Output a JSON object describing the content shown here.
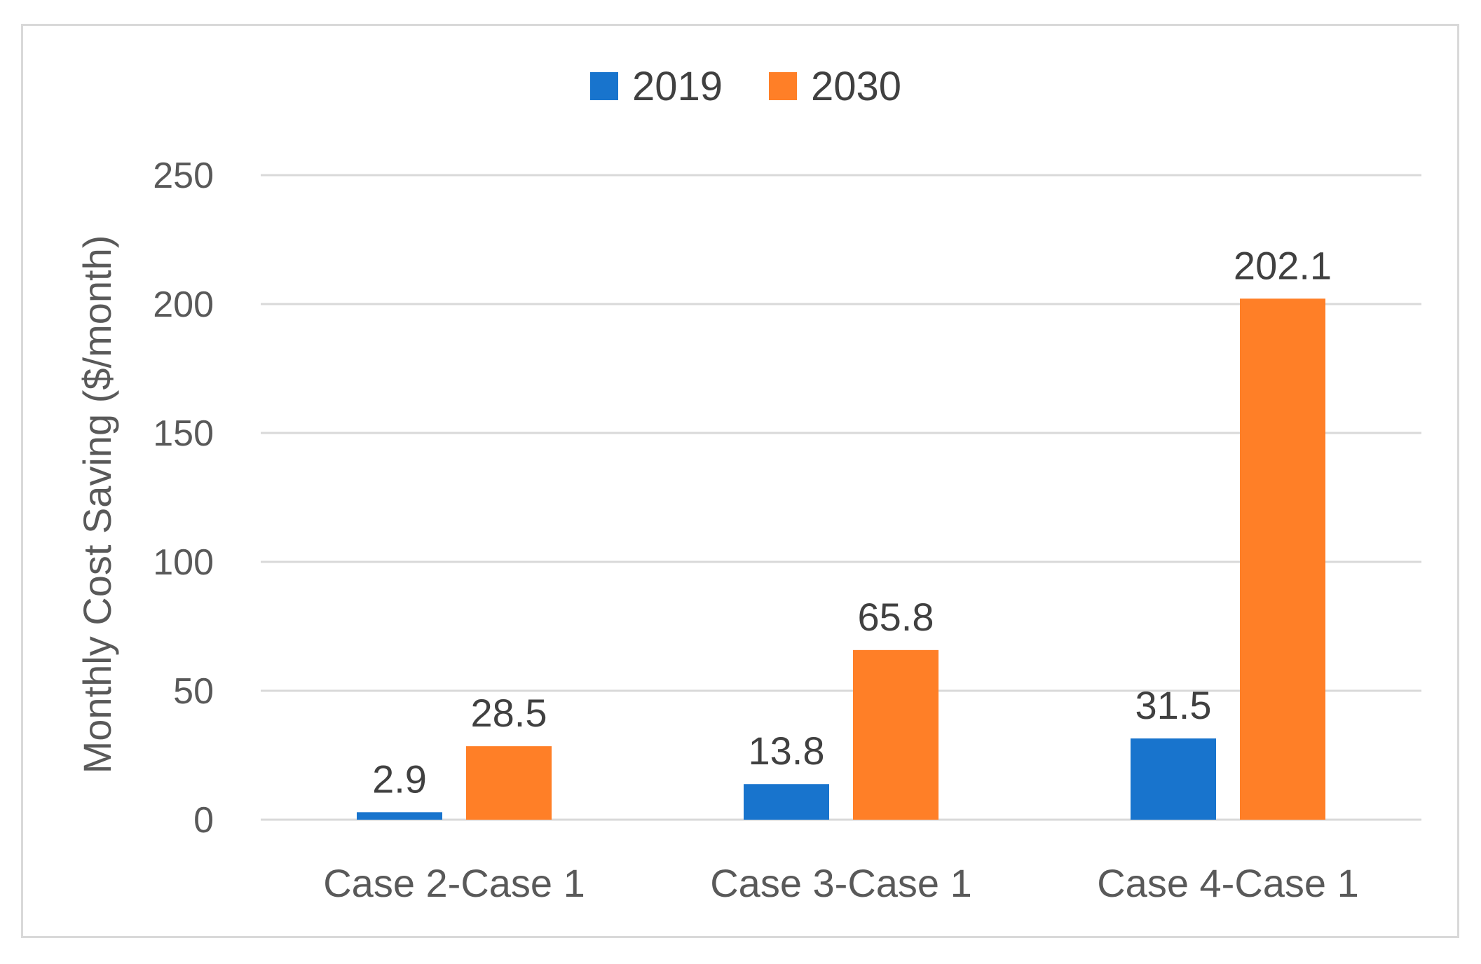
{
  "chart_data": {
    "type": "bar",
    "title": "",
    "xlabel": "",
    "ylabel": "Monthly Cost Saving ($/month)",
    "categories": [
      "Case 2-Case 1",
      "Case 3-Case 1",
      "Case 4-Case 1"
    ],
    "series": [
      {
        "name": "2019",
        "color": "#1874cd",
        "values": [
          2.9,
          13.8,
          31.5
        ]
      },
      {
        "name": "2030",
        "color": "#ff7f27",
        "values": [
          28.5,
          65.8,
          202.1
        ]
      }
    ],
    "ylim": [
      0,
      250
    ],
    "yticks": [
      0,
      50,
      100,
      150,
      200,
      250
    ],
    "grid": true,
    "legend_position": "top-center"
  }
}
